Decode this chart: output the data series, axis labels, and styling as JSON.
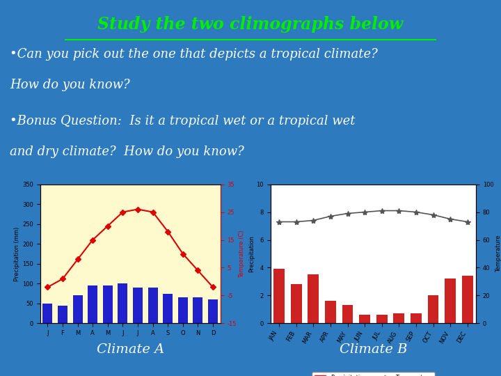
{
  "bg_color": "#2e7abf",
  "title": "Study the two climographs below",
  "title_color": "#00ee00",
  "title_fontsize": 17,
  "bullet1_line1": "•Can you pick out the one that depicts a tropical climate?",
  "bullet1_line2": "How do you know?",
  "bullet2_line1": "•Bonus Question:  Is it a tropical wet or a tropical wet",
  "bullet2_line2": "and dry climate?  How do you know?",
  "bullet_color": "white",
  "bullet_fontsize": 13,
  "climate_a_label": "Climate A",
  "climate_b_label": "Climate B",
  "label_color": "white",
  "label_fontsize": 14,
  "chart_a": {
    "months": [
      "J",
      "F",
      "M",
      "A",
      "M",
      "J",
      "J",
      "A",
      "S",
      "O",
      "N",
      "D"
    ],
    "precip": [
      50,
      45,
      70,
      95,
      95,
      100,
      90,
      90,
      75,
      65,
      65,
      60
    ],
    "temp_c": [
      -2,
      1,
      8,
      15,
      20,
      25,
      26,
      25,
      18,
      10,
      4,
      -2
    ],
    "precip_ylim": [
      0,
      350
    ],
    "temp_ylim": [
      -15,
      35
    ],
    "precip_yticks": [
      0,
      50,
      100,
      150,
      200,
      250,
      300,
      350
    ],
    "temp_yticks": [
      -15,
      -5,
      5,
      15,
      25,
      35
    ],
    "precip_label": "Precipitation (mm)",
    "temp_label": "Temperature (C)",
    "bar_color": "#2020cc",
    "line_color": "#dd0000",
    "bg_color": "#fffacd",
    "marker": "D"
  },
  "chart_b": {
    "months": [
      "JAN",
      "FEB",
      "MAR",
      "APR",
      "MAY",
      "JUN",
      "JUL",
      "AUG",
      "SEP",
      "OCT",
      "NOV",
      "DEC"
    ],
    "precip": [
      3.9,
      2.8,
      3.5,
      1.6,
      1.3,
      0.6,
      0.6,
      0.7,
      0.7,
      2.0,
      3.2,
      3.4
    ],
    "temp_f": [
      73,
      73,
      74,
      77,
      79,
      80,
      81,
      81,
      80,
      78,
      75,
      73
    ],
    "precip_ylim": [
      0,
      10
    ],
    "temp_ylim": [
      0,
      100
    ],
    "precip_yticks": [
      0,
      2,
      4,
      6,
      8,
      10
    ],
    "temp_yticks": [
      0,
      20,
      40,
      60,
      80,
      100
    ],
    "precip_label": "Precipitation",
    "temp_label": "Temperature",
    "bar_color": "#cc2222",
    "line_color": "#555555",
    "bg_color": "white",
    "marker": "*"
  }
}
